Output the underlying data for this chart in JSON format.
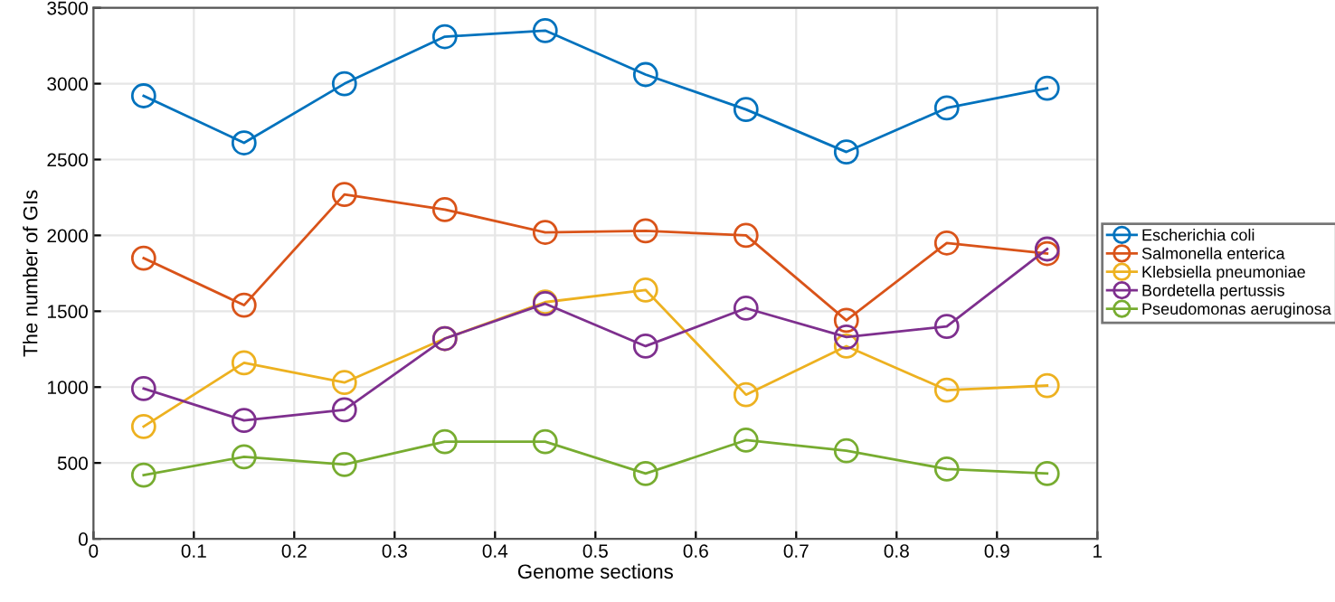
{
  "chart_data": {
    "type": "line",
    "xlabel": "Genome sections",
    "ylabel": "The number of GIs",
    "x": [
      0.05,
      0.15,
      0.25,
      0.35,
      0.45,
      0.55,
      0.65,
      0.75,
      0.85,
      0.95
    ],
    "series": [
      {
        "name": "Escherichia coli",
        "color": "#0072bd",
        "values": [
          2920,
          2610,
          3000,
          3310,
          3350,
          3060,
          2830,
          2550,
          2840,
          2970
        ]
      },
      {
        "name": "Salmonella enterica",
        "color": "#d95319",
        "values": [
          1850,
          1540,
          2270,
          2170,
          2020,
          2030,
          2000,
          1440,
          1950,
          1880
        ]
      },
      {
        "name": "Klebsiella pneumoniae",
        "color": "#edb120",
        "values": [
          740,
          1160,
          1030,
          1320,
          1560,
          1640,
          950,
          1270,
          980,
          1010
        ]
      },
      {
        "name": "Bordetella pertussis",
        "color": "#7e2f8e",
        "values": [
          990,
          780,
          850,
          1320,
          1550,
          1270,
          1520,
          1330,
          1400,
          1910
        ]
      },
      {
        "name": "Pseudomonas aeruginosa",
        "color": "#77ac30",
        "values": [
          420,
          540,
          490,
          640,
          640,
          430,
          650,
          580,
          460,
          430
        ]
      }
    ],
    "xlim": [
      0,
      1
    ],
    "xticks": [
      0,
      0.1,
      0.2,
      0.3,
      0.4,
      0.5,
      0.6,
      0.7,
      0.8,
      0.9,
      1
    ],
    "ylim": [
      0,
      3500
    ],
    "yticks": [
      0,
      500,
      1000,
      1500,
      2000,
      2500,
      3000,
      3500
    ],
    "grid": true,
    "legend": "right",
    "marker": "circle",
    "line_style": "solid"
  }
}
